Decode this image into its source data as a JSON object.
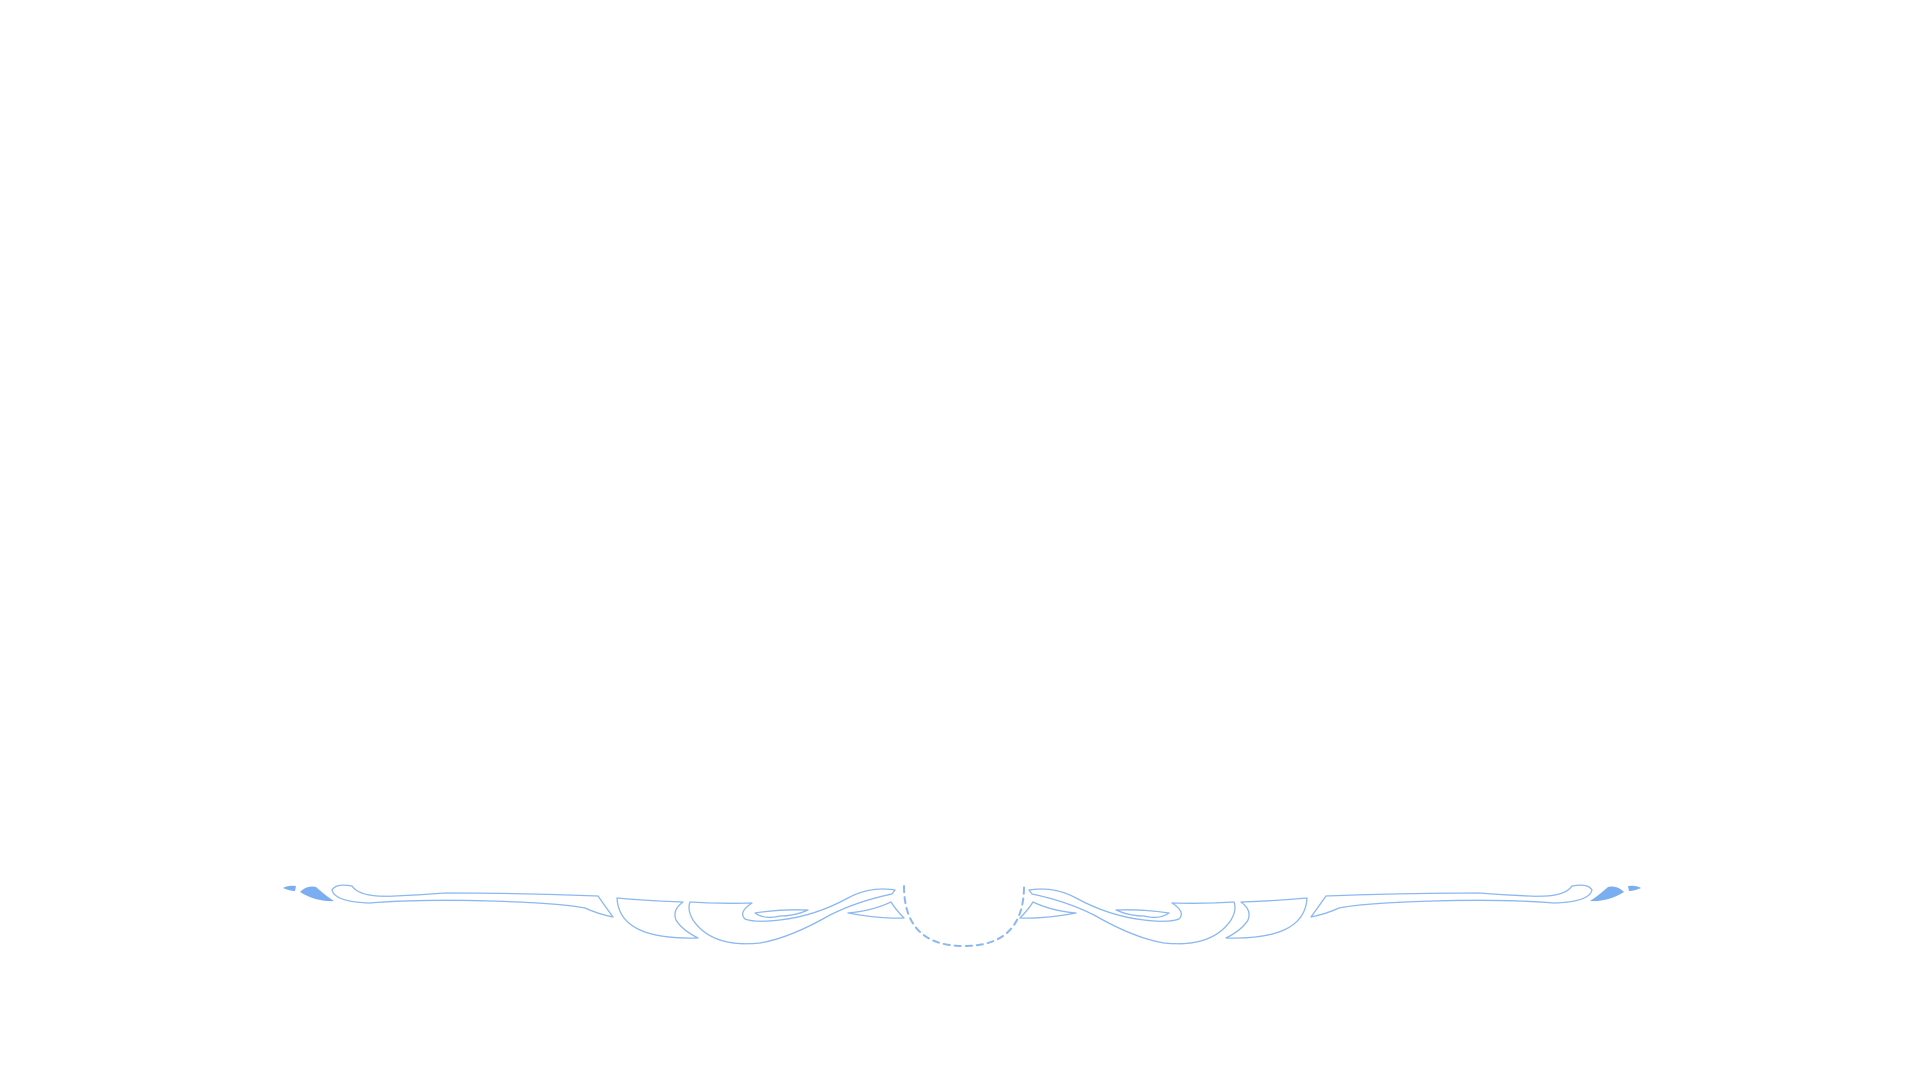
{
  "colors": {
    "background": "#ffffff",
    "ornament_stroke": "#8bb8ef",
    "ornament_fill": "#7aaef0"
  },
  "ornament": {
    "name": "scroll-flourish-divider",
    "style": "outlined-filigree",
    "center_element": "dashed-semicircle"
  }
}
